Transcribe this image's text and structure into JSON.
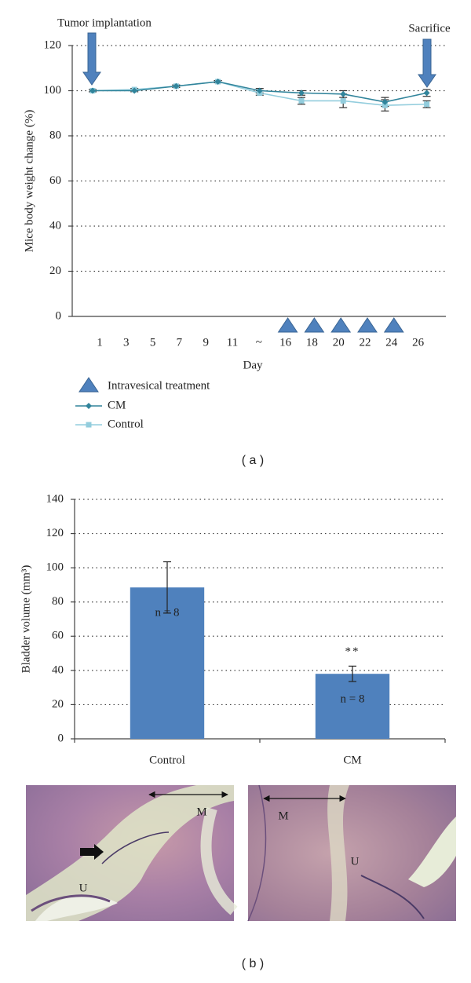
{
  "chart_data": [
    {
      "type": "line",
      "ylabel": "Mice body weight change (%)",
      "xlabel": "Day",
      "tick_labels": [
        "1",
        "3",
        "5",
        "7",
        "9",
        "11",
        "~",
        "16",
        "18",
        "20",
        "22",
        "24",
        "26"
      ],
      "series": [
        {
          "name": "CM",
          "color": "#31849b",
          "marker": "diamond",
          "values": [
            100,
            100,
            102,
            104,
            100,
            99,
            98.5,
            95,
            99
          ],
          "errors": [
            0.5,
            0.5,
            0.5,
            0.5,
            1,
            1,
            1.5,
            2,
            1.5
          ]
        },
        {
          "name": "Control",
          "color": "#93cddd",
          "marker": "square",
          "values": [
            100,
            100.5,
            102,
            104,
            99,
            95.5,
            95.5,
            93.5,
            94
          ],
          "errors": [
            0.5,
            0.5,
            0.5,
            0.5,
            1,
            1.5,
            3,
            2.5,
            1.5
          ]
        }
      ],
      "marker_legend": "Intravesical treatment",
      "marker_color": "#4f81bd",
      "annotations": [
        "Tumor implantation",
        "Sacrifice"
      ],
      "ylim": [
        0,
        120
      ],
      "yticks": [
        0,
        20,
        40,
        60,
        80,
        100,
        120
      ],
      "grid": true,
      "panel_label": "( a )"
    },
    {
      "type": "bar",
      "ylabel": "Bladder volume (mm³)",
      "categories": [
        "Control",
        "CM"
      ],
      "values": [
        88.5,
        38
      ],
      "errors": [
        15,
        4.5
      ],
      "bar_labels": [
        "n = 8",
        "n = 8"
      ],
      "significance": [
        null,
        "**"
      ],
      "color": "#4f81bd",
      "ylim": [
        0,
        140
      ],
      "yticks": [
        0,
        20,
        40,
        60,
        80,
        100,
        120,
        140
      ],
      "grid": true
    }
  ],
  "micrographs": [
    {
      "labels": [
        "M",
        "U"
      ]
    },
    {
      "labels": [
        "M",
        "U"
      ]
    }
  ],
  "figure_label": "( b )"
}
